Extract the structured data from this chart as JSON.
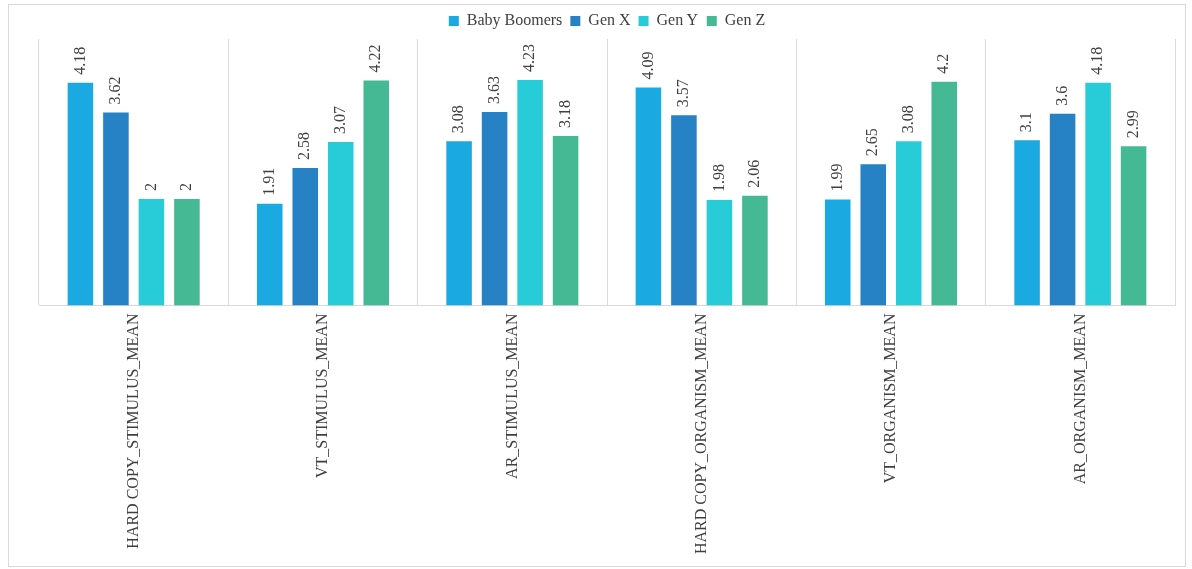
{
  "chart_data": {
    "type": "bar",
    "categories": [
      "HARD COPY_STIMULUS_MEAN",
      "VT_STIMULUS_MEAN",
      "AR_STIMULUS_MEAN",
      "HARD COPY_ORGANISM_MEAN",
      "VT_ORGANISM_MEAN",
      "AR_ORGANISM_MEAN"
    ],
    "series": [
      {
        "name": "Baby Boomers",
        "color": "#1ba9e1",
        "values": [
          4.18,
          1.91,
          3.08,
          4.09,
          1.99,
          3.1
        ]
      },
      {
        "name": "Gen X",
        "color": "#2781c5",
        "values": [
          3.62,
          2.58,
          3.63,
          3.57,
          2.65,
          3.6
        ]
      },
      {
        "name": "Gen Y",
        "color": "#28ccd8",
        "values": [
          2,
          3.07,
          4.23,
          1.98,
          3.08,
          4.18
        ]
      },
      {
        "name": "Gen Z",
        "color": "#45b994",
        "values": [
          2,
          4.22,
          3.18,
          2.06,
          4.2,
          2.99
        ]
      }
    ],
    "data_labels": true,
    "grid": "x",
    "legend": "top",
    "tick_labels": "x"
  }
}
